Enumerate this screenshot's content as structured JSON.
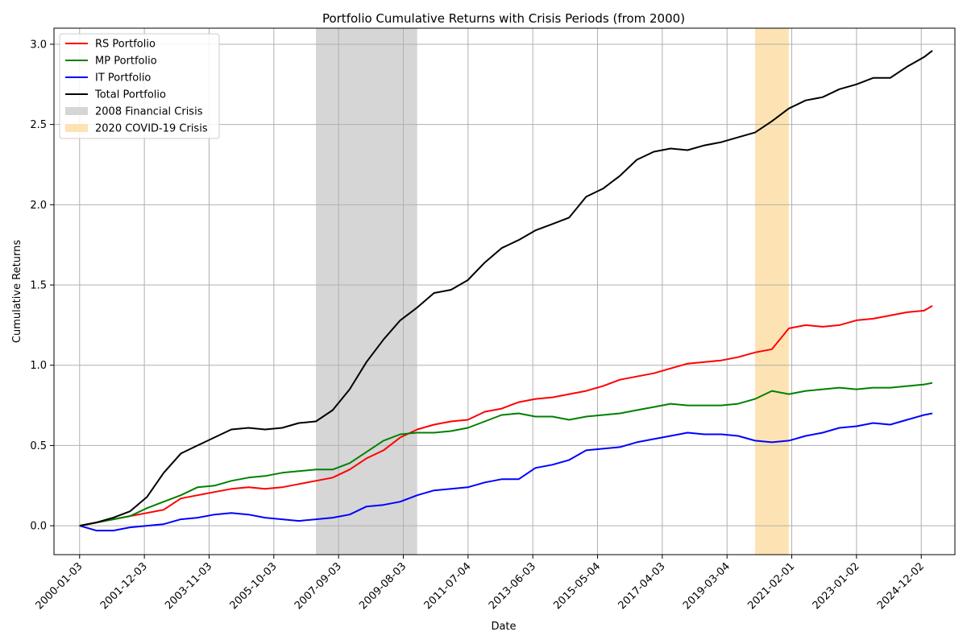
{
  "chart_data": {
    "type": "line",
    "title": "Portfolio Cumulative Returns with Crisis Periods (from 2000)",
    "xlabel": "Date",
    "ylabel": "Cumulative Returns",
    "xlim": [
      "1999-04-01",
      "2025-12-01"
    ],
    "ylim": [
      -0.18,
      3.1
    ],
    "yticks": [
      0.0,
      0.5,
      1.0,
      1.5,
      2.0,
      2.5,
      3.0
    ],
    "ytick_labels": [
      "0.0",
      "0.5",
      "1.0",
      "1.5",
      "2.0",
      "2.5",
      "3.0"
    ],
    "xticks": [
      "2000-01-03",
      "2001-12-03",
      "2003-11-03",
      "2005-10-03",
      "2007-09-03",
      "2009-08-03",
      "2011-07-04",
      "2013-06-03",
      "2015-05-04",
      "2017-04-03",
      "2019-03-04",
      "2021-02-01",
      "2023-01-02",
      "2024-12-02"
    ],
    "grid": true,
    "legend_position": "top-left",
    "crisis_periods": [
      {
        "name": "2008 Financial Crisis",
        "start": "2007-01-01",
        "end": "2009-12-31",
        "color": "#d6d6d6"
      },
      {
        "name": "2020 COVID-19 Crisis",
        "start": "2020-01-01",
        "end": "2020-12-31",
        "color": "#fde3b3"
      }
    ],
    "series": [
      {
        "name": "RS Portfolio",
        "color": "#ff0000",
        "x": [
          "2000-01-03",
          "2000-07-01",
          "2001-01-01",
          "2001-07-01",
          "2002-01-01",
          "2002-07-01",
          "2003-01-01",
          "2003-07-01",
          "2004-01-01",
          "2004-07-01",
          "2005-01-01",
          "2005-07-01",
          "2006-01-01",
          "2006-07-01",
          "2007-01-01",
          "2007-07-01",
          "2008-01-01",
          "2008-07-01",
          "2009-01-01",
          "2009-07-01",
          "2010-01-01",
          "2010-07-01",
          "2011-01-01",
          "2011-07-01",
          "2012-01-01",
          "2012-07-01",
          "2013-01-01",
          "2013-07-01",
          "2014-01-01",
          "2014-07-01",
          "2015-01-01",
          "2015-07-01",
          "2016-01-01",
          "2016-07-01",
          "2017-01-01",
          "2017-07-01",
          "2018-01-01",
          "2018-07-01",
          "2019-01-01",
          "2019-07-01",
          "2020-01-01",
          "2020-07-01",
          "2021-01-01",
          "2021-07-01",
          "2022-01-01",
          "2022-07-01",
          "2023-01-01",
          "2023-07-01",
          "2024-01-01",
          "2024-07-01",
          "2025-01-01",
          "2025-04-01"
        ],
        "y": [
          0.0,
          0.02,
          0.04,
          0.06,
          0.08,
          0.1,
          0.17,
          0.19,
          0.21,
          0.23,
          0.24,
          0.23,
          0.24,
          0.26,
          0.28,
          0.3,
          0.35,
          0.42,
          0.47,
          0.55,
          0.6,
          0.63,
          0.65,
          0.66,
          0.71,
          0.73,
          0.77,
          0.79,
          0.8,
          0.82,
          0.84,
          0.87,
          0.91,
          0.93,
          0.95,
          0.98,
          1.01,
          1.02,
          1.03,
          1.05,
          1.08,
          1.1,
          1.23,
          1.25,
          1.24,
          1.25,
          1.28,
          1.29,
          1.31,
          1.33,
          1.34,
          1.37
        ]
      },
      {
        "name": "MP Portfolio",
        "color": "#008000",
        "x": [
          "2000-01-03",
          "2000-07-01",
          "2001-01-01",
          "2001-07-01",
          "2002-01-01",
          "2002-07-01",
          "2003-01-01",
          "2003-07-01",
          "2004-01-01",
          "2004-07-01",
          "2005-01-01",
          "2005-07-01",
          "2006-01-01",
          "2006-07-01",
          "2007-01-01",
          "2007-07-01",
          "2008-01-01",
          "2008-07-01",
          "2009-01-01",
          "2009-07-01",
          "2010-01-01",
          "2010-07-01",
          "2011-01-01",
          "2011-07-01",
          "2012-01-01",
          "2012-07-01",
          "2013-01-01",
          "2013-07-01",
          "2014-01-01",
          "2014-07-01",
          "2015-01-01",
          "2015-07-01",
          "2016-01-01",
          "2016-07-01",
          "2017-01-01",
          "2017-07-01",
          "2018-01-01",
          "2018-07-01",
          "2019-01-01",
          "2019-07-01",
          "2020-01-01",
          "2020-07-01",
          "2021-01-01",
          "2021-07-01",
          "2022-01-01",
          "2022-07-01",
          "2023-01-01",
          "2023-07-01",
          "2024-01-01",
          "2024-07-01",
          "2025-01-01",
          "2025-04-01"
        ],
        "y": [
          0.0,
          0.02,
          0.04,
          0.06,
          0.11,
          0.15,
          0.19,
          0.24,
          0.25,
          0.28,
          0.3,
          0.31,
          0.33,
          0.34,
          0.35,
          0.35,
          0.39,
          0.46,
          0.53,
          0.57,
          0.58,
          0.58,
          0.59,
          0.61,
          0.65,
          0.69,
          0.7,
          0.68,
          0.68,
          0.66,
          0.68,
          0.69,
          0.7,
          0.72,
          0.74,
          0.76,
          0.75,
          0.75,
          0.75,
          0.76,
          0.79,
          0.84,
          0.82,
          0.84,
          0.85,
          0.86,
          0.85,
          0.86,
          0.86,
          0.87,
          0.88,
          0.89
        ]
      },
      {
        "name": "IT Portfolio",
        "color": "#0000ff",
        "x": [
          "2000-01-03",
          "2000-07-01",
          "2001-01-01",
          "2001-07-01",
          "2002-01-01",
          "2002-07-01",
          "2003-01-01",
          "2003-07-01",
          "2004-01-01",
          "2004-07-01",
          "2005-01-01",
          "2005-07-01",
          "2006-01-01",
          "2006-07-01",
          "2007-01-01",
          "2007-07-01",
          "2008-01-01",
          "2008-07-01",
          "2009-01-01",
          "2009-07-01",
          "2010-01-01",
          "2010-07-01",
          "2011-01-01",
          "2011-07-01",
          "2012-01-01",
          "2012-07-01",
          "2013-01-01",
          "2013-07-01",
          "2014-01-01",
          "2014-07-01",
          "2015-01-01",
          "2015-07-01",
          "2016-01-01",
          "2016-07-01",
          "2017-01-01",
          "2017-07-01",
          "2018-01-01",
          "2018-07-01",
          "2019-01-01",
          "2019-07-01",
          "2020-01-01",
          "2020-07-01",
          "2021-01-01",
          "2021-07-01",
          "2022-01-01",
          "2022-07-01",
          "2023-01-01",
          "2023-07-01",
          "2024-01-01",
          "2024-07-01",
          "2025-01-01",
          "2025-04-01"
        ],
        "y": [
          0.0,
          -0.03,
          -0.03,
          -0.01,
          0.0,
          0.01,
          0.04,
          0.05,
          0.07,
          0.08,
          0.07,
          0.05,
          0.04,
          0.03,
          0.04,
          0.05,
          0.07,
          0.12,
          0.13,
          0.15,
          0.19,
          0.22,
          0.23,
          0.24,
          0.27,
          0.29,
          0.29,
          0.36,
          0.38,
          0.41,
          0.47,
          0.48,
          0.49,
          0.52,
          0.54,
          0.56,
          0.58,
          0.57,
          0.57,
          0.56,
          0.53,
          0.52,
          0.53,
          0.56,
          0.58,
          0.61,
          0.62,
          0.64,
          0.63,
          0.66,
          0.69,
          0.7
        ]
      },
      {
        "name": "Total Portfolio",
        "color": "#000000",
        "x": [
          "2000-01-03",
          "2000-07-01",
          "2001-01-01",
          "2001-07-01",
          "2002-01-01",
          "2002-07-01",
          "2003-01-01",
          "2003-07-01",
          "2004-01-01",
          "2004-07-01",
          "2005-01-01",
          "2005-07-01",
          "2006-01-01",
          "2006-07-01",
          "2007-01-01",
          "2007-07-01",
          "2008-01-01",
          "2008-07-01",
          "2009-01-01",
          "2009-07-01",
          "2010-01-01",
          "2010-07-01",
          "2011-01-01",
          "2011-07-01",
          "2012-01-01",
          "2012-07-01",
          "2013-01-01",
          "2013-07-01",
          "2014-01-01",
          "2014-07-01",
          "2015-01-01",
          "2015-07-01",
          "2016-01-01",
          "2016-07-01",
          "2017-01-01",
          "2017-07-01",
          "2018-01-01",
          "2018-07-01",
          "2019-01-01",
          "2019-07-01",
          "2020-01-01",
          "2020-07-01",
          "2021-01-01",
          "2021-07-01",
          "2022-01-01",
          "2022-07-01",
          "2023-01-01",
          "2023-07-01",
          "2024-01-01",
          "2024-07-01",
          "2025-01-01",
          "2025-04-01"
        ],
        "y": [
          0.0,
          0.02,
          0.05,
          0.09,
          0.18,
          0.33,
          0.45,
          0.5,
          0.55,
          0.6,
          0.61,
          0.6,
          0.61,
          0.64,
          0.65,
          0.72,
          0.85,
          1.02,
          1.16,
          1.28,
          1.36,
          1.45,
          1.47,
          1.53,
          1.64,
          1.73,
          1.78,
          1.84,
          1.88,
          1.92,
          2.05,
          2.1,
          2.18,
          2.28,
          2.33,
          2.35,
          2.34,
          2.37,
          2.39,
          2.42,
          2.45,
          2.52,
          2.6,
          2.65,
          2.67,
          2.72,
          2.75,
          2.79,
          2.79,
          2.86,
          2.92,
          2.96
        ]
      }
    ]
  }
}
